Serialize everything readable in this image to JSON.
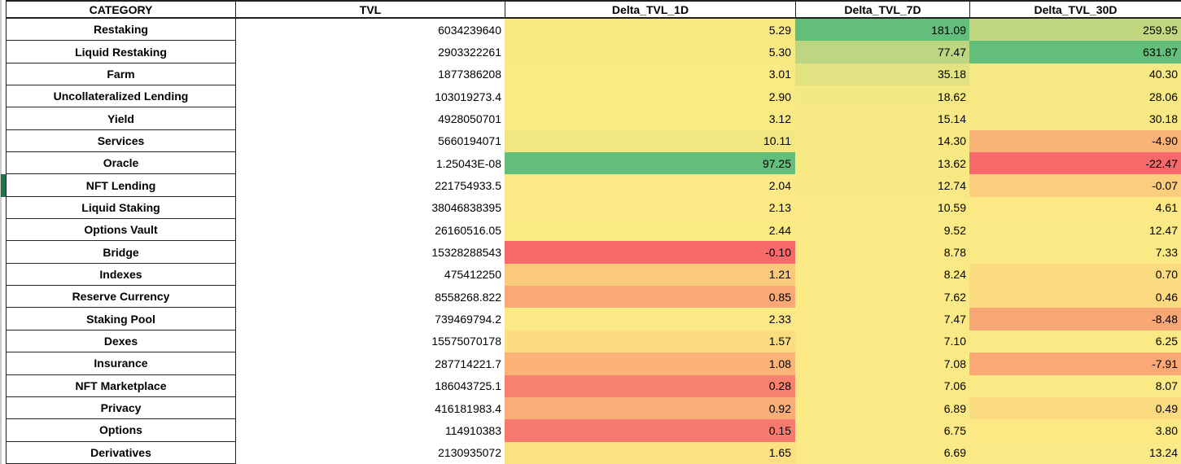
{
  "table": {
    "headers": {
      "category": "CATEGORY",
      "tvl": "TVL",
      "delta_1d": "Delta_TVL_1D",
      "delta_7d": "Delta_TVL_7D",
      "delta_30d": "Delta_TVL_30D"
    },
    "rows": [
      {
        "category": "Restaking",
        "tvl": "6034239640",
        "d1": "5.29",
        "d7": "181.09",
        "d30": "259.95",
        "c1": "#FAE983",
        "c7": "#63BE7B",
        "c30": "#C1D880"
      },
      {
        "category": "Liquid Restaking",
        "tvl": "2903322261",
        "d1": "5.30",
        "d7": "77.47",
        "d30": "631.87",
        "c1": "#FAE983",
        "c7": "#BCD681",
        "c30": "#63BE7B"
      },
      {
        "category": "Farm",
        "tvl": "1877386208",
        "d1": "3.01",
        "d7": "35.18",
        "d30": "40.30",
        "c1": "#FBE984",
        "c7": "#E2E282",
        "c30": "#F6E984"
      },
      {
        "category": "Uncollateralized Lending",
        "tvl": "103019273.4",
        "d1": "2.90",
        "d7": "18.62",
        "d30": "28.06",
        "c1": "#FBE984",
        "c7": "#F3E884",
        "c30": "#F8E985"
      },
      {
        "category": "Yield",
        "tvl": "4928050701",
        "d1": "3.12",
        "d7": "15.14",
        "d30": "30.18",
        "c1": "#FBE984",
        "c7": "#F7E985",
        "c30": "#F8E985"
      },
      {
        "category": "Services",
        "tvl": "5660194071",
        "d1": "10.11",
        "d7": "14.30",
        "d30": "-4.90",
        "c1": "#F1E682",
        "c7": "#F8E985",
        "c30": "#FAB377"
      },
      {
        "category": "Oracle",
        "tvl": "1.25043E-08",
        "d1": "97.25",
        "d7": "13.62",
        "d30": "-22.47",
        "c1": "#63BE7B",
        "c7": "#F8E985",
        "c30": "#F8696B"
      },
      {
        "category": "NFT Lending",
        "tvl": "221754933.5",
        "d1": "2.04",
        "d7": "12.74",
        "d30": "-0.07",
        "c1": "#FCE985",
        "c7": "#F9E985",
        "c30": "#FBCD7D"
      },
      {
        "category": "Liquid Staking",
        "tvl": "38046838395",
        "d1": "2.13",
        "d7": "10.59",
        "d30": "4.61",
        "c1": "#FCE985",
        "c7": "#FAE985",
        "c30": "#FCE884"
      },
      {
        "category": "Options Vault",
        "tvl": "26160516.05",
        "d1": "2.44",
        "d7": "9.52",
        "d30": "12.47",
        "c1": "#FBE984",
        "c7": "#FAE985",
        "c30": "#FAE985"
      },
      {
        "category": "Bridge",
        "tvl": "15328288543",
        "d1": "-0.10",
        "d7": "8.78",
        "d30": "7.33",
        "c1": "#F8696B",
        "c7": "#FBE985",
        "c30": "#FBE985"
      },
      {
        "category": "Indexes",
        "tvl": "475412250",
        "d1": "1.21",
        "d7": "8.24",
        "d30": "0.70",
        "c1": "#FBC97C",
        "c7": "#FBE985",
        "c30": "#FCDC80"
      },
      {
        "category": "Reserve Currency",
        "tvl": "8558268.822",
        "d1": "0.85",
        "d7": "7.62",
        "d30": "0.46",
        "c1": "#FAA976",
        "c7": "#FBE985",
        "c30": "#FCDA7F"
      },
      {
        "category": "Staking Pool",
        "tvl": "739469794.2",
        "d1": "2.33",
        "d7": "7.47",
        "d30": "-8.48",
        "c1": "#FCE985",
        "c7": "#FBE985",
        "c30": "#F9A675"
      },
      {
        "category": "Dexes",
        "tvl": "15575070178",
        "d1": "1.57",
        "d7": "7.10",
        "d30": "6.25",
        "c1": "#FCDC80",
        "c7": "#FBE985",
        "c30": "#FBE985"
      },
      {
        "category": "Insurance",
        "tvl": "287714221.7",
        "d1": "1.08",
        "d7": "7.08",
        "d30": "-7.91",
        "c1": "#FBB378",
        "c7": "#FBE985",
        "c30": "#F9A876"
      },
      {
        "category": "NFT Marketplace",
        "tvl": "186043725.1",
        "d1": "0.28",
        "d7": "7.06",
        "d30": "8.07",
        "c1": "#F8816F",
        "c7": "#FBE985",
        "c30": "#FBE985"
      },
      {
        "category": "Privacy",
        "tvl": "416181983.4",
        "d1": "0.92",
        "d7": "6.89",
        "d30": "0.49",
        "c1": "#FAAD77",
        "c7": "#FBE985",
        "c30": "#FCDC80"
      },
      {
        "category": "Options",
        "tvl": "114910383",
        "d1": "0.15",
        "d7": "6.75",
        "d30": "3.80",
        "c1": "#F87A6E",
        "c7": "#FBE985",
        "c30": "#FDE983"
      },
      {
        "category": "Derivatives",
        "tvl": "2130935072",
        "d1": "1.65",
        "d7": "6.69",
        "d30": "13.24",
        "c1": "#FDE082",
        "c7": "#FBE985",
        "c30": "#FAE985"
      }
    ]
  },
  "selection": {
    "selected_row_category": "NFT Lending",
    "selected_row_index": 7
  },
  "colors": {
    "grid_border": "#1f1f1f",
    "selection_green": "#217346",
    "sheet_edge_gray": "#cacaca",
    "scale_min_red": "#F8696B",
    "scale_mid_yellow": "#FBE985",
    "scale_max_green": "#63BE7B",
    "cell_text": "#000000",
    "background": "#ffffff"
  }
}
